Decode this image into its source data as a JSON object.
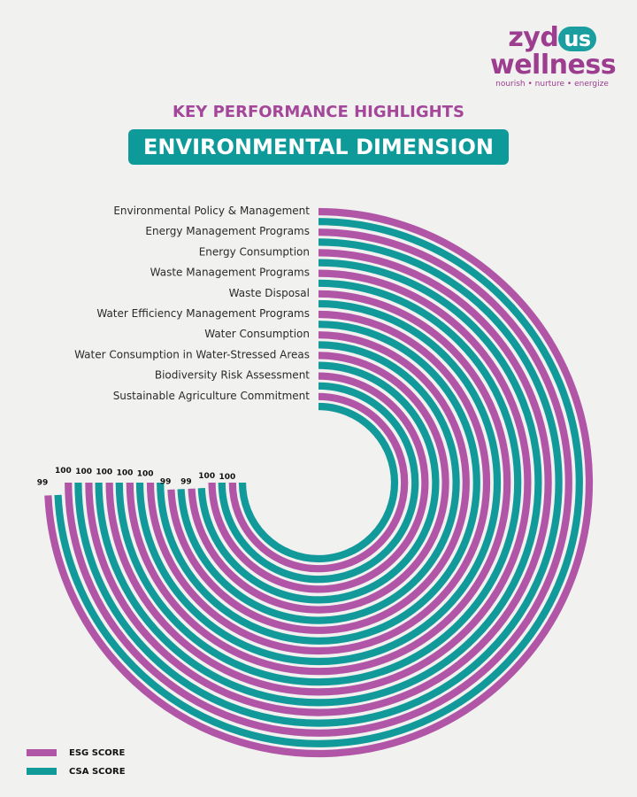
{
  "brand": {
    "line1_a": "zyd",
    "line1_b": "us",
    "line2": "wellness",
    "tagline": "nourish • nurture • energize"
  },
  "kicker": "KEY PERFORMANCE HIGHLIGHTS",
  "banner": "ENVIRONMENTAL DIMENSION",
  "legend": [
    {
      "label": "ESG SCORE",
      "color": "#b156a6"
    },
    {
      "label": "CSA SCORE",
      "color": "#12999a"
    }
  ],
  "chart_data": {
    "type": "radial-bar",
    "categories": [
      "Environmental Policy & Management",
      "Energy Management Programs",
      "Energy Consumption",
      "Waste Management Programs",
      "Waste Disposal",
      "Water Efficiency Management Programs",
      "Water Consumption",
      "Water Consumption in Water-Stressed Areas",
      "Biodiversity Risk Assessment",
      "Sustainable Agriculture Commitment"
    ],
    "series": [
      {
        "name": "ESG SCORE",
        "values": [
          99,
          100,
          100,
          100,
          100,
          100,
          99,
          99,
          100,
          100
        ]
      },
      {
        "name": "CSA SCORE",
        "values": [
          99,
          100,
          100,
          100,
          100,
          100,
          99,
          99,
          100,
          100
        ]
      }
    ],
    "data_labels": [
      "99",
      "100",
      "100",
      "100",
      "100",
      "100",
      "99",
      "99",
      "100",
      "100"
    ],
    "colors": {
      "esg": "#b156a6",
      "csa": "#12999a"
    },
    "value_max": 100,
    "legend_position": "bottom-left"
  }
}
